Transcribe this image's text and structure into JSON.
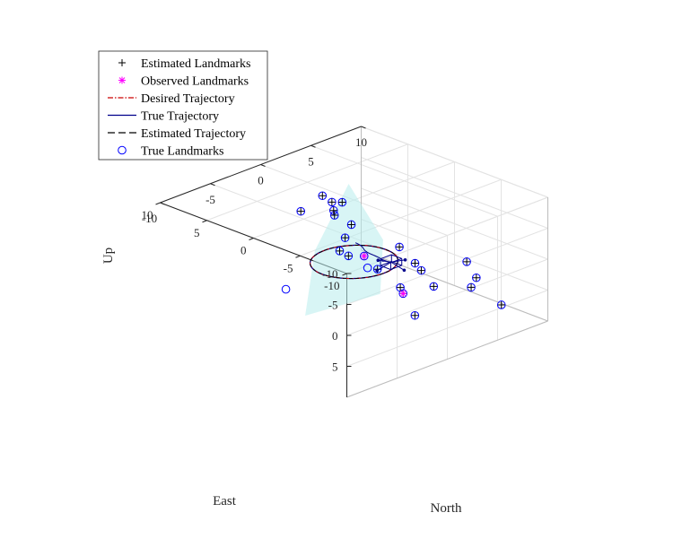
{
  "chart_data": {
    "type": "scatter3d",
    "title": "",
    "axes": {
      "east": {
        "label": "East",
        "range": [
          -10,
          10
        ],
        "ticks": [
          "-10",
          "-5",
          "0",
          "5",
          "10"
        ]
      },
      "north": {
        "label": "North",
        "range": [
          -10,
          10
        ],
        "ticks": [
          "-10",
          "-5",
          "0",
          "5",
          "10"
        ]
      },
      "up": {
        "label": "Up",
        "range": [
          -10,
          10
        ],
        "ticks": [
          "-10",
          "-5",
          "0",
          "5"
        ]
      }
    },
    "grid": true,
    "legend": {
      "placement": "top-left",
      "entries": [
        {
          "label": "Estimated Landmarks",
          "marker": "plus",
          "color": "#000000"
        },
        {
          "label": "Observed Landmarks",
          "marker": "asterisk",
          "color": "#ff00ff"
        },
        {
          "label": "Desired Trajectory",
          "marker": "dashdot-line",
          "color": "#cc0000"
        },
        {
          "label": "True Trajectory",
          "marker": "solid-line",
          "color": "#00008b"
        },
        {
          "label": "Estimated Trajectory",
          "marker": "dashed-line",
          "color": "#000000"
        },
        {
          "label": "True Landmarks",
          "marker": "circle",
          "color": "#0000ff"
        }
      ]
    },
    "colors": {
      "plane_fill": "#b8ecec",
      "desired": "#cc0000",
      "true_traj": "#00008b",
      "estimated_traj": "#000000",
      "true_landmark": "#0000ff",
      "estimated_landmark": "#000000",
      "observed_landmark": "#ff00ff"
    },
    "landmarks_true": [
      [
        -8.9,
        6.4,
        5.8
      ],
      [
        -9.6,
        2.3,
        -4.1
      ],
      [
        -7.4,
        5.3,
        1.6
      ],
      [
        -6.2,
        5.9,
        4.2
      ],
      [
        -5.2,
        3.1,
        2.9
      ],
      [
        -4.8,
        1.6,
        6.9
      ],
      [
        -3.2,
        3.1,
        0.3
      ],
      [
        -2.9,
        4.0,
        2.2
      ],
      [
        -1.2,
        3.4,
        -1.0
      ],
      [
        -0.2,
        4.7,
        7.9
      ],
      [
        1.9,
        4.1,
        4.8
      ],
      [
        2.1,
        1.4,
        1.1
      ],
      [
        4.4,
        3.2,
        0.6
      ],
      [
        6.1,
        5.4,
        0.8
      ],
      [
        7.8,
        5.3,
        0.2
      ],
      [
        8.7,
        6.9,
        -0.4
      ],
      [
        5.2,
        2.8,
        -3.6
      ],
      [
        7.0,
        4.3,
        -3.0
      ],
      [
        6.4,
        2.8,
        -5.3
      ],
      [
        7.1,
        1.3,
        -3.3
      ],
      [
        1.0,
        -0.5,
        -1.5
      ],
      [
        -4.1,
        0.8,
        2.3
      ],
      [
        0.1,
        1.1,
        -0.2
      ],
      [
        0.3,
        -6.5,
        0.6
      ],
      [
        -0.7,
        0.7,
        1.0
      ]
    ],
    "landmarks_estimated": [
      [
        -8.9,
        6.4,
        5.8
      ],
      [
        -9.6,
        2.3,
        -4.1
      ],
      [
        -7.4,
        5.3,
        1.6
      ],
      [
        -6.2,
        5.9,
        4.2
      ],
      [
        -5.2,
        3.1,
        2.9
      ],
      [
        -4.8,
        1.6,
        6.9
      ],
      [
        -3.2,
        3.1,
        0.3
      ],
      [
        -2.9,
        4.0,
        2.2
      ],
      [
        -1.2,
        3.4,
        -1.0
      ],
      [
        -0.2,
        4.7,
        7.9
      ],
      [
        1.9,
        4.1,
        4.8
      ],
      [
        2.1,
        1.4,
        1.1
      ],
      [
        4.4,
        3.2,
        0.6
      ],
      [
        6.1,
        5.4,
        0.8
      ],
      [
        7.8,
        5.3,
        0.2
      ],
      [
        8.7,
        6.9,
        -0.4
      ],
      [
        5.2,
        2.8,
        -3.6
      ],
      [
        7.0,
        4.3,
        -3.0
      ],
      [
        6.4,
        2.8,
        -5.3
      ],
      [
        7.1,
        1.3,
        -3.3
      ],
      [
        1.0,
        -0.5,
        -1.5
      ],
      [
        -4.1,
        0.8,
        2.3
      ],
      [
        0.1,
        1.1,
        -0.2
      ]
    ],
    "landmarks_observed": [
      [
        -0.2,
        4.7,
        7.9
      ],
      [
        0.1,
        1.1,
        -0.2
      ]
    ],
    "trajectory": {
      "shape": "circle",
      "center": [
        0,
        0,
        0
      ],
      "radius": 3.2,
      "plane": "horizontal"
    },
    "current_position": [
      -1.5,
      2.3,
      0.6
    ],
    "sensor_plane": [
      [
        2.0,
        -3.0,
        8.0
      ],
      [
        1.5,
        4.0,
        8.5
      ],
      [
        5.5,
        8.0,
        4.5
      ],
      [
        6.5,
        5.5,
        -5.5
      ],
      [
        1.5,
        -2.5,
        -2.5
      ]
    ]
  }
}
